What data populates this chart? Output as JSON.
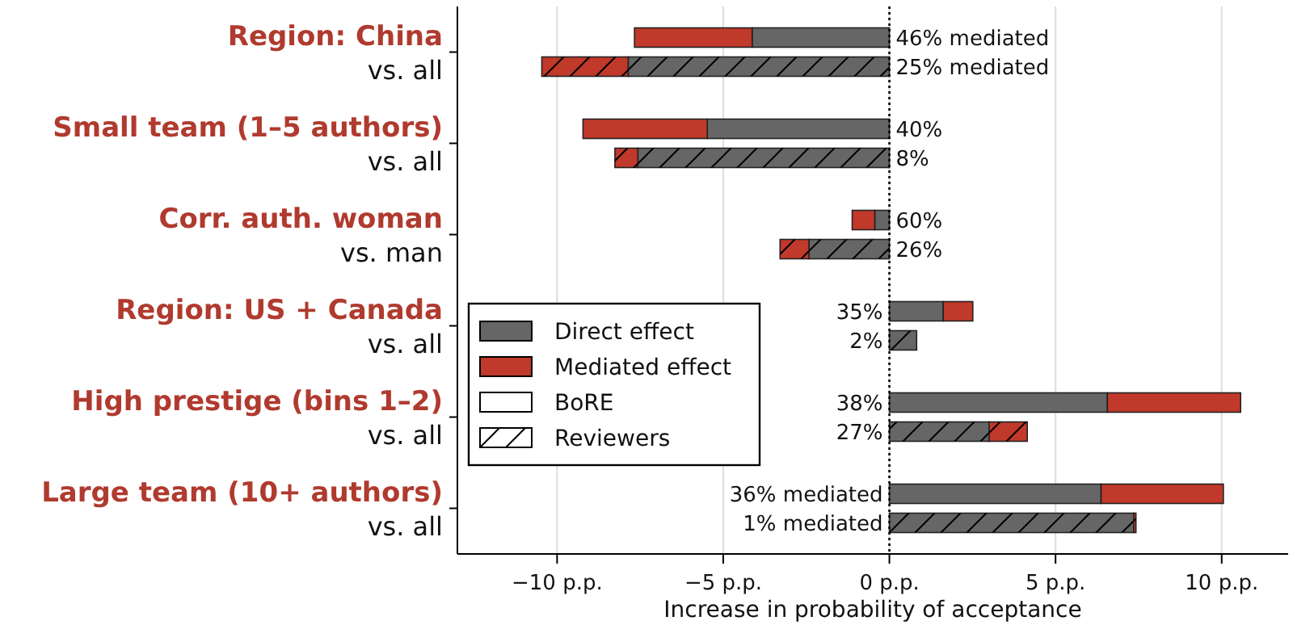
{
  "chart_data": {
    "type": "bar",
    "orientation": "horizontal",
    "stacked": true,
    "categories": [
      "Region: China",
      "vs. all",
      "Small team (1–5 authors)",
      "vs. all",
      "Corr. auth. woman",
      "vs. man",
      "Region: US + Canada",
      "vs. all",
      "High prestige (bins 1–2)",
      "vs. all",
      "Large team (10+ authors)",
      "vs. all"
    ],
    "series": [
      {
        "name": "Direct effect",
        "color": "#666666",
        "values": [
          -4.13,
          null,
          -5.48,
          null,
          -0.44,
          null,
          1.62,
          null,
          6.56,
          null,
          6.37,
          null
        ]
      },
      {
        "name": "Mediated effect",
        "color": "#c0392b",
        "values": [
          -3.54,
          null,
          -3.74,
          null,
          -0.68,
          null,
          0.89,
          null,
          4.01,
          null,
          3.68,
          null
        ]
      },
      {
        "color": "#666666",
        "values": [
          null,
          -7.86,
          null,
          -7.57,
          null,
          -2.42,
          null,
          0.82,
          null,
          3.0,
          null,
          7.35
        ]
      },
      {
        "color": "#c0392b",
        "values": [
          null,
          -2.6,
          null,
          -0.69,
          null,
          -0.87,
          null,
          null,
          null,
          1.15,
          null,
          0.07
        ]
      }
    ],
    "annotations": [
      "46% mediated",
      "25% mediated",
      "40%",
      "8%",
      "60%",
      "26%",
      "35%",
      "2%",
      "38%",
      "27%",
      "36% mediated",
      "1% mediated",
      "BoRE",
      "Reviewers"
    ],
    "xlabel": "Increase in probability of acceptance",
    "xlim": [
      -13,
      12
    ],
    "xticks": [
      {
        "value": -10,
        "label": "−10 p.p."
      },
      {
        "value": -5,
        "label": "−5 p.p."
      },
      {
        "value": 0,
        "label": "0 p.p."
      },
      {
        "value": 5,
        "label": "5 p.p."
      },
      {
        "value": 10,
        "label": "10 p.p."
      }
    ],
    "ref_lines": [
      {
        "axis": "x",
        "value": 0,
        "line_style": "dotted",
        "color": "#000000"
      }
    ],
    "grid": "x",
    "legend": "center left"
  }
}
